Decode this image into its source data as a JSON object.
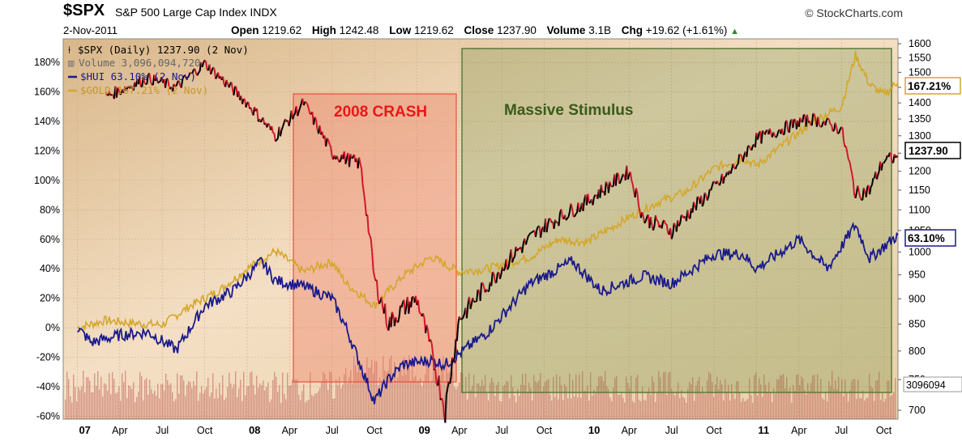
{
  "header": {
    "symbol": "$SPX",
    "index_name": "S&P 500 Large Cap Index",
    "exchange": "INDX",
    "brand": "© StockCharts.com",
    "date": "2-Nov-2011",
    "open_label": "Open",
    "open": "1219.62",
    "high_label": "High",
    "high": "1242.48",
    "low_label": "Low",
    "low": "1219.62",
    "close_label": "Close",
    "close": "1237.90",
    "volume_label": "Volume",
    "volume": "3.1B",
    "chg_label": "Chg",
    "chg": "+19.62 (+1.61%)",
    "chg_arrow": "▲"
  },
  "legend": {
    "spx": "$SPX (Daily) 1237.90 (2 Nov)",
    "volume": "Volume 3,096,094,720",
    "hui": "$HUI 63.10% (2 Nov)",
    "gold": "$GOLD 167.21% (2 Nov)"
  },
  "annotations": {
    "crash": "2008 CRASH",
    "stimulus": "Massive Stimulus"
  },
  "badges": {
    "gold": "167.21%",
    "spx": "1237.90",
    "hui": "63.10%",
    "volume": "3096094"
  },
  "colors": {
    "spx_up": "#000000",
    "spx_down": "#d0182a",
    "hui": "#1a1a8c",
    "gold": "#d4a72c",
    "crash_box": "#e8503c",
    "stimulus_box": "#5a7a3a",
    "volume": "#b44040"
  },
  "chart_data": {
    "type": "line",
    "x_ticks": [
      {
        "label": "07",
        "year": true,
        "x": "2007-01"
      },
      {
        "label": "Apr",
        "year": false,
        "x": "2007-04"
      },
      {
        "label": "Jul",
        "year": false,
        "x": "2007-07"
      },
      {
        "label": "Oct",
        "year": false,
        "x": "2007-10"
      },
      {
        "label": "08",
        "year": true,
        "x": "2008-01"
      },
      {
        "label": "Apr",
        "year": false,
        "x": "2008-04"
      },
      {
        "label": "Jul",
        "year": false,
        "x": "2008-07"
      },
      {
        "label": "Oct",
        "year": false,
        "x": "2008-10"
      },
      {
        "label": "09",
        "year": true,
        "x": "2009-01"
      },
      {
        "label": "Apr",
        "year": false,
        "x": "2009-04"
      },
      {
        "label": "Jul",
        "year": false,
        "x": "2009-07"
      },
      {
        "label": "Oct",
        "year": false,
        "x": "2009-10"
      },
      {
        "label": "10",
        "year": true,
        "x": "2010-01"
      },
      {
        "label": "Apr",
        "year": false,
        "x": "2010-04"
      },
      {
        "label": "Jul",
        "year": false,
        "x": "2010-07"
      },
      {
        "label": "Oct",
        "year": false,
        "x": "2010-10"
      },
      {
        "label": "11",
        "year": true,
        "x": "2011-01"
      },
      {
        "label": "Apr",
        "year": false,
        "x": "2011-04"
      },
      {
        "label": "Jul",
        "year": false,
        "x": "2011-07"
      },
      {
        "label": "Oct",
        "year": false,
        "x": "2011-10"
      }
    ],
    "x_range": [
      "2006-12",
      "2011-11"
    ],
    "left_axis": {
      "unit": "%",
      "ticks": [
        "180%",
        "160%",
        "140%",
        "120%",
        "100%",
        "80%",
        "60%",
        "40%",
        "20%",
        "0%",
        "-20%",
        "-40%",
        "-60%"
      ],
      "tick_values": [
        180,
        160,
        140,
        120,
        100,
        80,
        60,
        40,
        20,
        0,
        -20,
        -40,
        -60
      ],
      "range": [
        -62,
        196
      ]
    },
    "right_axis": {
      "ticks": [
        "1600",
        "1550",
        "1500",
        "1450",
        "1400",
        "1350",
        "1300",
        "1250",
        "1200",
        "1150",
        "1100",
        "1050",
        "1000",
        "950",
        "900",
        "850",
        "800",
        "750",
        "700"
      ],
      "tick_values": [
        1600,
        1550,
        1500,
        1450,
        1400,
        1350,
        1300,
        1250,
        1200,
        1150,
        1100,
        1050,
        1000,
        950,
        900,
        850,
        800,
        750,
        700
      ],
      "scale": "log"
    },
    "series": [
      {
        "name": "$SPX",
        "axis": "right",
        "x": [
          "2007-03",
          "2007-06",
          "2007-08",
          "2007-10",
          "2008-01",
          "2008-03",
          "2008-05",
          "2008-07",
          "2008-09",
          "2008-10",
          "2008-11",
          "2008-12",
          "2009-01",
          "2009-03",
          "2009-04",
          "2009-06",
          "2009-08",
          "2009-10",
          "2010-01",
          "2010-04",
          "2010-05",
          "2010-07",
          "2010-09",
          "2010-11",
          "2011-01",
          "2011-04",
          "2011-05",
          "2011-07",
          "2011-08",
          "2011-09",
          "2011-10",
          "2011-11"
        ],
        "values": [
          1420,
          1480,
          1450,
          1530,
          1400,
          1300,
          1400,
          1250,
          1220,
          940,
          850,
          880,
          900,
          700,
          860,
          930,
          1000,
          1060,
          1120,
          1200,
          1080,
          1050,
          1120,
          1190,
          1290,
          1340,
          1350,
          1320,
          1140,
          1150,
          1230,
          1238
        ]
      },
      {
        "name": "$HUI",
        "axis": "left",
        "x": [
          "2007-01",
          "2007-02",
          "2007-04",
          "2007-06",
          "2007-08",
          "2007-10",
          "2007-12",
          "2008-02",
          "2008-03",
          "2008-05",
          "2008-07",
          "2008-08",
          "2008-09",
          "2008-10",
          "2008-11",
          "2008-12",
          "2009-02",
          "2009-03",
          "2009-06",
          "2009-09",
          "2009-12",
          "2010-02",
          "2010-05",
          "2010-07",
          "2010-10",
          "2010-12",
          "2011-01",
          "2011-04",
          "2011-06",
          "2011-08",
          "2011-09",
          "2011-10",
          "2011-11"
        ],
        "values": [
          0,
          -10,
          -5,
          -3,
          -15,
          15,
          25,
          45,
          32,
          28,
          20,
          0,
          -25,
          -50,
          -35,
          -25,
          -22,
          -25,
          -3,
          30,
          45,
          25,
          35,
          30,
          50,
          50,
          40,
          60,
          40,
          70,
          47,
          55,
          63
        ]
      },
      {
        "name": "$GOLD",
        "axis": "left",
        "x": [
          "2007-01",
          "2007-03",
          "2007-05",
          "2007-07",
          "2007-09",
          "2007-11",
          "2008-01",
          "2008-03",
          "2008-05",
          "2008-07",
          "2008-08",
          "2008-10",
          "2008-11",
          "2008-12",
          "2009-02",
          "2009-04",
          "2009-06",
          "2009-09",
          "2009-11",
          "2010-01",
          "2010-04",
          "2010-06",
          "2010-08",
          "2010-10",
          "2010-12",
          "2011-01",
          "2011-03",
          "2011-05",
          "2011-07",
          "2011-08",
          "2011-09",
          "2011-10",
          "2011-11"
        ],
        "values": [
          0,
          5,
          3,
          2,
          15,
          25,
          40,
          52,
          38,
          45,
          30,
          15,
          25,
          35,
          48,
          38,
          40,
          48,
          60,
          58,
          75,
          85,
          92,
          108,
          115,
          110,
          125,
          140,
          150,
          185,
          165,
          158,
          167
        ]
      }
    ]
  }
}
